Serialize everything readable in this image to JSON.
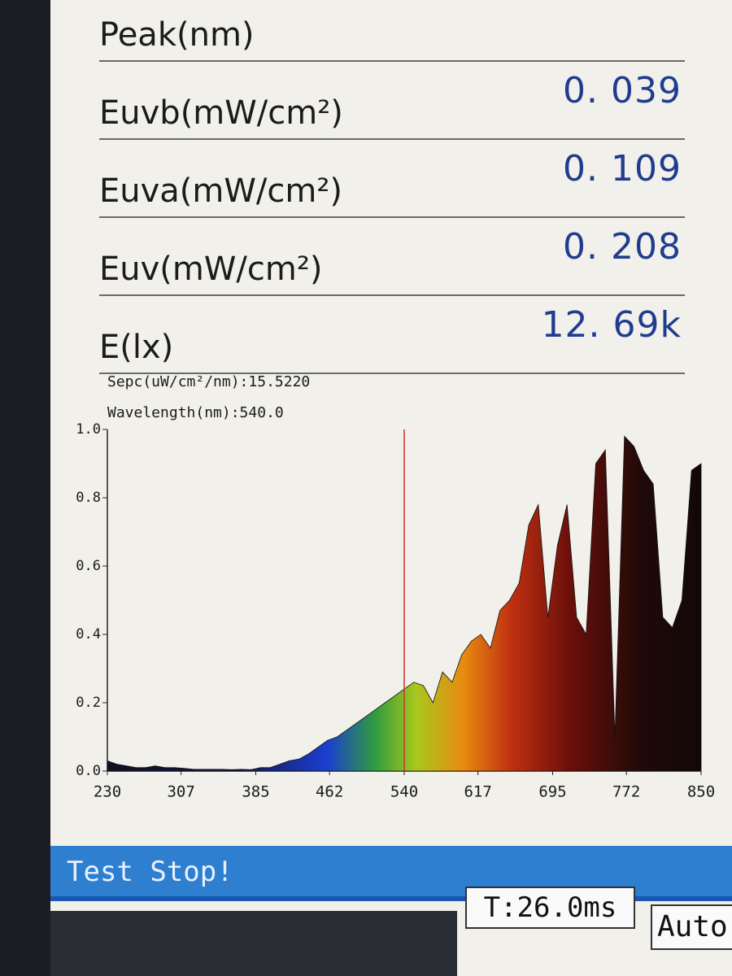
{
  "readings": [
    {
      "label": "Peak(nm)"
    },
    {
      "label": "Euvb(mW/cm²)",
      "value": "0. 039"
    },
    {
      "label": "Euva(mW/cm²)",
      "value": "0. 109"
    },
    {
      "label": "Euv(mW/cm²)",
      "value": "0. 208"
    },
    {
      "label": "E(lx)",
      "value": "12. 69k"
    }
  ],
  "chart_data": {
    "type": "area",
    "sepc_label": "Sepc(uW/cm²/nm):15.5220",
    "wavelength_label": "Wavelength(nm):540.0",
    "cursor": 540,
    "x": [
      230,
      240,
      250,
      260,
      270,
      280,
      290,
      300,
      310,
      320,
      330,
      340,
      350,
      360,
      370,
      380,
      390,
      400,
      410,
      420,
      430,
      440,
      450,
      460,
      470,
      480,
      490,
      500,
      510,
      520,
      530,
      540,
      550,
      560,
      570,
      580,
      590,
      600,
      610,
      620,
      630,
      640,
      650,
      660,
      670,
      680,
      690,
      700,
      710,
      720,
      730,
      740,
      750,
      760,
      770,
      780,
      790,
      800,
      810,
      820,
      830,
      840,
      850
    ],
    "values": [
      0.03,
      0.02,
      0.015,
      0.01,
      0.01,
      0.015,
      0.01,
      0.01,
      0.008,
      0.005,
      0.005,
      0.005,
      0.005,
      0.004,
      0.005,
      0.004,
      0.01,
      0.01,
      0.02,
      0.03,
      0.035,
      0.05,
      0.07,
      0.09,
      0.1,
      0.12,
      0.14,
      0.16,
      0.18,
      0.2,
      0.22,
      0.24,
      0.26,
      0.25,
      0.2,
      0.29,
      0.26,
      0.34,
      0.38,
      0.4,
      0.36,
      0.47,
      0.5,
      0.55,
      0.72,
      0.78,
      0.45,
      0.66,
      0.78,
      0.45,
      0.4,
      0.9,
      0.94,
      0.1,
      0.98,
      0.95,
      0.88,
      0.84,
      0.45,
      0.42,
      0.5,
      0.88,
      0.9
    ],
    "xlim": [
      230,
      850
    ],
    "xticks": [
      230,
      307,
      385,
      462,
      540,
      617,
      695,
      772,
      850
    ],
    "ylim": [
      0,
      1
    ],
    "yticks": [
      {
        "value": 0,
        "label": "0.0"
      },
      0.2,
      0.4,
      0.6,
      0.8,
      {
        "value": 1,
        "label": "1.0"
      }
    ],
    "cursor_color": "#d03030"
  },
  "status": {
    "message": "Test Stop!",
    "time": "T:26.0ms",
    "mode": "Auto"
  }
}
